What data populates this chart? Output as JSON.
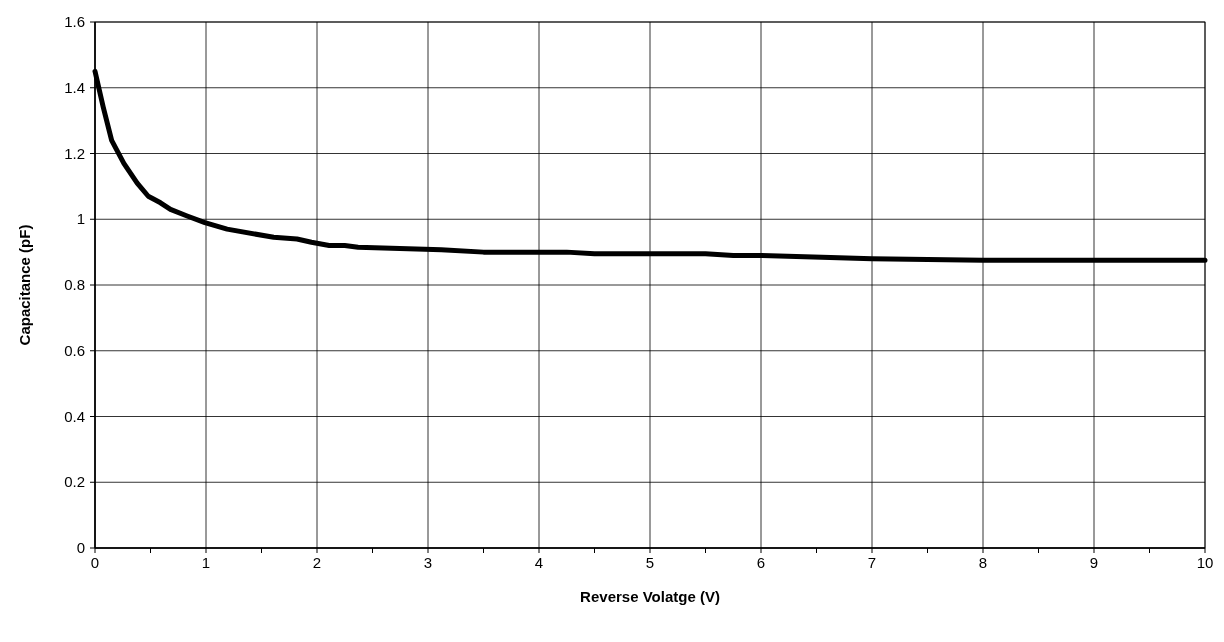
{
  "chart_data": {
    "type": "line",
    "xlabel": "Reverse Volatge (V)",
    "ylabel": "Capacitance (pF)",
    "xlim": [
      0,
      10
    ],
    "xticks": [
      0,
      {
        "value": 0.5,
        "label": null
      },
      1,
      {
        "value": 1.5,
        "label": null
      },
      2,
      {
        "value": 2.5,
        "label": null
      },
      3,
      {
        "value": 3.5,
        "label": null
      },
      4,
      {
        "value": 4.5,
        "label": null
      },
      5,
      {
        "value": 5.5,
        "label": null
      },
      6,
      {
        "value": 6.5,
        "label": null
      },
      7,
      {
        "value": 7.5,
        "label": null
      },
      8,
      {
        "value": 8.5,
        "label": null
      },
      9,
      {
        "value": 9.5,
        "label": null
      },
      10
    ],
    "ylim": [
      0,
      1.6
    ],
    "yticks": [
      0,
      0.2,
      0.4,
      0.6,
      0.8,
      1,
      1.2,
      1.4,
      1.6
    ],
    "grid": true,
    "marker": "none",
    "line_style": "solid",
    "series": [
      {
        "color": "#000000",
        "x": [
          0,
          0.075,
          0.15,
          0.26,
          0.38,
          0.48,
          0.59,
          0.68,
          0.83,
          0.99,
          1.19,
          1.61,
          1.82,
          1.95,
          2.11,
          2.25,
          2.37,
          3.12,
          3.5,
          4.25,
          4.5,
          5.5,
          5.75,
          6,
          7,
          8,
          10
        ],
        "values": [
          1.45,
          1.34,
          1.24,
          1.17,
          1.11,
          1.07,
          1.05,
          1.03,
          1.01,
          0.99,
          0.97,
          0.945,
          0.94,
          0.93,
          0.92,
          0.92,
          0.915,
          0.907,
          0.9,
          0.9,
          0.895,
          0.895,
          0.89,
          0.89,
          0.88,
          0.875,
          0.875
        ]
      }
    ]
  }
}
